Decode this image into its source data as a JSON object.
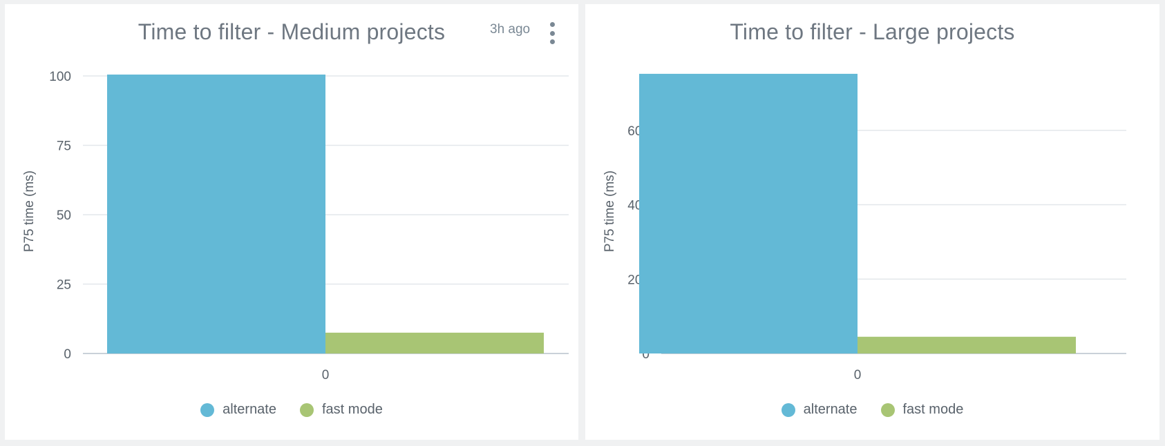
{
  "panels": [
    {
      "title": "Time to filter - Medium projects",
      "updated": "3h ago",
      "legend": [
        {
          "label": "alternate",
          "color": "#63b9d6"
        },
        {
          "label": "fast mode",
          "color": "#a8c574"
        }
      ]
    },
    {
      "title": "Time to filter - Large projects",
      "legend": [
        {
          "label": "alternate",
          "color": "#63b9d6"
        },
        {
          "label": "fast mode",
          "color": "#a8c574"
        }
      ]
    }
  ],
  "chart_data": [
    {
      "type": "bar",
      "title": "Time to filter - Medium projects",
      "xlabel": "",
      "ylabel": "P75 time (ms)",
      "categories": [
        "0"
      ],
      "series": [
        {
          "name": "alternate",
          "values": [
            100.5
          ],
          "color": "#63b9d6"
        },
        {
          "name": "fast mode",
          "values": [
            7.5
          ],
          "color": "#a8c574"
        }
      ],
      "yticks": [
        0,
        25,
        50,
        75,
        100
      ],
      "ylim": [
        0,
        100
      ],
      "grid": true,
      "legend": "bottom-center"
    },
    {
      "type": "bar",
      "title": "Time to filter - Large projects",
      "xlabel": "",
      "ylabel": "P75 time (ms)",
      "categories": [
        "0"
      ],
      "series": [
        {
          "name": "alternate",
          "values": [
            752
          ],
          "color": "#63b9d6"
        },
        {
          "name": "fast mode",
          "values": [
            45
          ],
          "color": "#a8c574"
        }
      ],
      "yticks": [
        0,
        200,
        400,
        600
      ],
      "ylim": [
        0,
        750
      ],
      "grid": true,
      "legend": "bottom-center"
    }
  ]
}
